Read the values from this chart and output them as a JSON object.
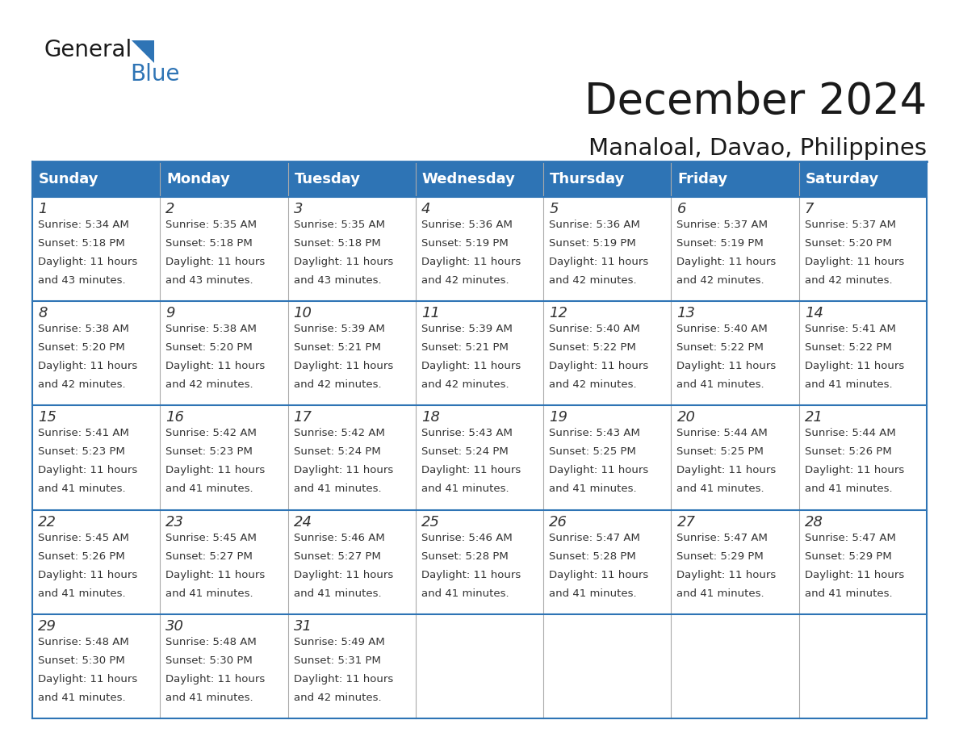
{
  "title": "December 2024",
  "subtitle": "Manaloal, Davao, Philippines",
  "header_color": "#2e74b5",
  "header_text_color": "#ffffff",
  "cell_bg_color": "#ffffff",
  "border_color": "#2e74b5",
  "grid_color": "#aaaaaa",
  "text_color": "#333333",
  "day_headers": [
    "Sunday",
    "Monday",
    "Tuesday",
    "Wednesday",
    "Thursday",
    "Friday",
    "Saturday"
  ],
  "weeks": [
    [
      {
        "day": 1,
        "sunrise": "5:34 AM",
        "sunset": "5:18 PM",
        "daylight": "11 hours and 43 minutes."
      },
      {
        "day": 2,
        "sunrise": "5:35 AM",
        "sunset": "5:18 PM",
        "daylight": "11 hours and 43 minutes."
      },
      {
        "day": 3,
        "sunrise": "5:35 AM",
        "sunset": "5:18 PM",
        "daylight": "11 hours and 43 minutes."
      },
      {
        "day": 4,
        "sunrise": "5:36 AM",
        "sunset": "5:19 PM",
        "daylight": "11 hours and 42 minutes."
      },
      {
        "day": 5,
        "sunrise": "5:36 AM",
        "sunset": "5:19 PM",
        "daylight": "11 hours and 42 minutes."
      },
      {
        "day": 6,
        "sunrise": "5:37 AM",
        "sunset": "5:19 PM",
        "daylight": "11 hours and 42 minutes."
      },
      {
        "day": 7,
        "sunrise": "5:37 AM",
        "sunset": "5:20 PM",
        "daylight": "11 hours and 42 minutes."
      }
    ],
    [
      {
        "day": 8,
        "sunrise": "5:38 AM",
        "sunset": "5:20 PM",
        "daylight": "11 hours and 42 minutes."
      },
      {
        "day": 9,
        "sunrise": "5:38 AM",
        "sunset": "5:20 PM",
        "daylight": "11 hours and 42 minutes."
      },
      {
        "day": 10,
        "sunrise": "5:39 AM",
        "sunset": "5:21 PM",
        "daylight": "11 hours and 42 minutes."
      },
      {
        "day": 11,
        "sunrise": "5:39 AM",
        "sunset": "5:21 PM",
        "daylight": "11 hours and 42 minutes."
      },
      {
        "day": 12,
        "sunrise": "5:40 AM",
        "sunset": "5:22 PM",
        "daylight": "11 hours and 42 minutes."
      },
      {
        "day": 13,
        "sunrise": "5:40 AM",
        "sunset": "5:22 PM",
        "daylight": "11 hours and 41 minutes."
      },
      {
        "day": 14,
        "sunrise": "5:41 AM",
        "sunset": "5:22 PM",
        "daylight": "11 hours and 41 minutes."
      }
    ],
    [
      {
        "day": 15,
        "sunrise": "5:41 AM",
        "sunset": "5:23 PM",
        "daylight": "11 hours and 41 minutes."
      },
      {
        "day": 16,
        "sunrise": "5:42 AM",
        "sunset": "5:23 PM",
        "daylight": "11 hours and 41 minutes."
      },
      {
        "day": 17,
        "sunrise": "5:42 AM",
        "sunset": "5:24 PM",
        "daylight": "11 hours and 41 minutes."
      },
      {
        "day": 18,
        "sunrise": "5:43 AM",
        "sunset": "5:24 PM",
        "daylight": "11 hours and 41 minutes."
      },
      {
        "day": 19,
        "sunrise": "5:43 AM",
        "sunset": "5:25 PM",
        "daylight": "11 hours and 41 minutes."
      },
      {
        "day": 20,
        "sunrise": "5:44 AM",
        "sunset": "5:25 PM",
        "daylight": "11 hours and 41 minutes."
      },
      {
        "day": 21,
        "sunrise": "5:44 AM",
        "sunset": "5:26 PM",
        "daylight": "11 hours and 41 minutes."
      }
    ],
    [
      {
        "day": 22,
        "sunrise": "5:45 AM",
        "sunset": "5:26 PM",
        "daylight": "11 hours and 41 minutes."
      },
      {
        "day": 23,
        "sunrise": "5:45 AM",
        "sunset": "5:27 PM",
        "daylight": "11 hours and 41 minutes."
      },
      {
        "day": 24,
        "sunrise": "5:46 AM",
        "sunset": "5:27 PM",
        "daylight": "11 hours and 41 minutes."
      },
      {
        "day": 25,
        "sunrise": "5:46 AM",
        "sunset": "5:28 PM",
        "daylight": "11 hours and 41 minutes."
      },
      {
        "day": 26,
        "sunrise": "5:47 AM",
        "sunset": "5:28 PM",
        "daylight": "11 hours and 41 minutes."
      },
      {
        "day": 27,
        "sunrise": "5:47 AM",
        "sunset": "5:29 PM",
        "daylight": "11 hours and 41 minutes."
      },
      {
        "day": 28,
        "sunrise": "5:47 AM",
        "sunset": "5:29 PM",
        "daylight": "11 hours and 41 minutes."
      }
    ],
    [
      {
        "day": 29,
        "sunrise": "5:48 AM",
        "sunset": "5:30 PM",
        "daylight": "11 hours and 41 minutes."
      },
      {
        "day": 30,
        "sunrise": "5:48 AM",
        "sunset": "5:30 PM",
        "daylight": "11 hours and 41 minutes."
      },
      {
        "day": 31,
        "sunrise": "5:49 AM",
        "sunset": "5:31 PM",
        "daylight": "11 hours and 42 minutes."
      },
      null,
      null,
      null,
      null
    ]
  ],
  "title_fontsize": 38,
  "subtitle_fontsize": 21,
  "header_fontsize": 13,
  "day_num_fontsize": 13,
  "cell_text_fontsize": 9.5,
  "logo_general_fontsize": 20,
  "logo_blue_fontsize": 20
}
